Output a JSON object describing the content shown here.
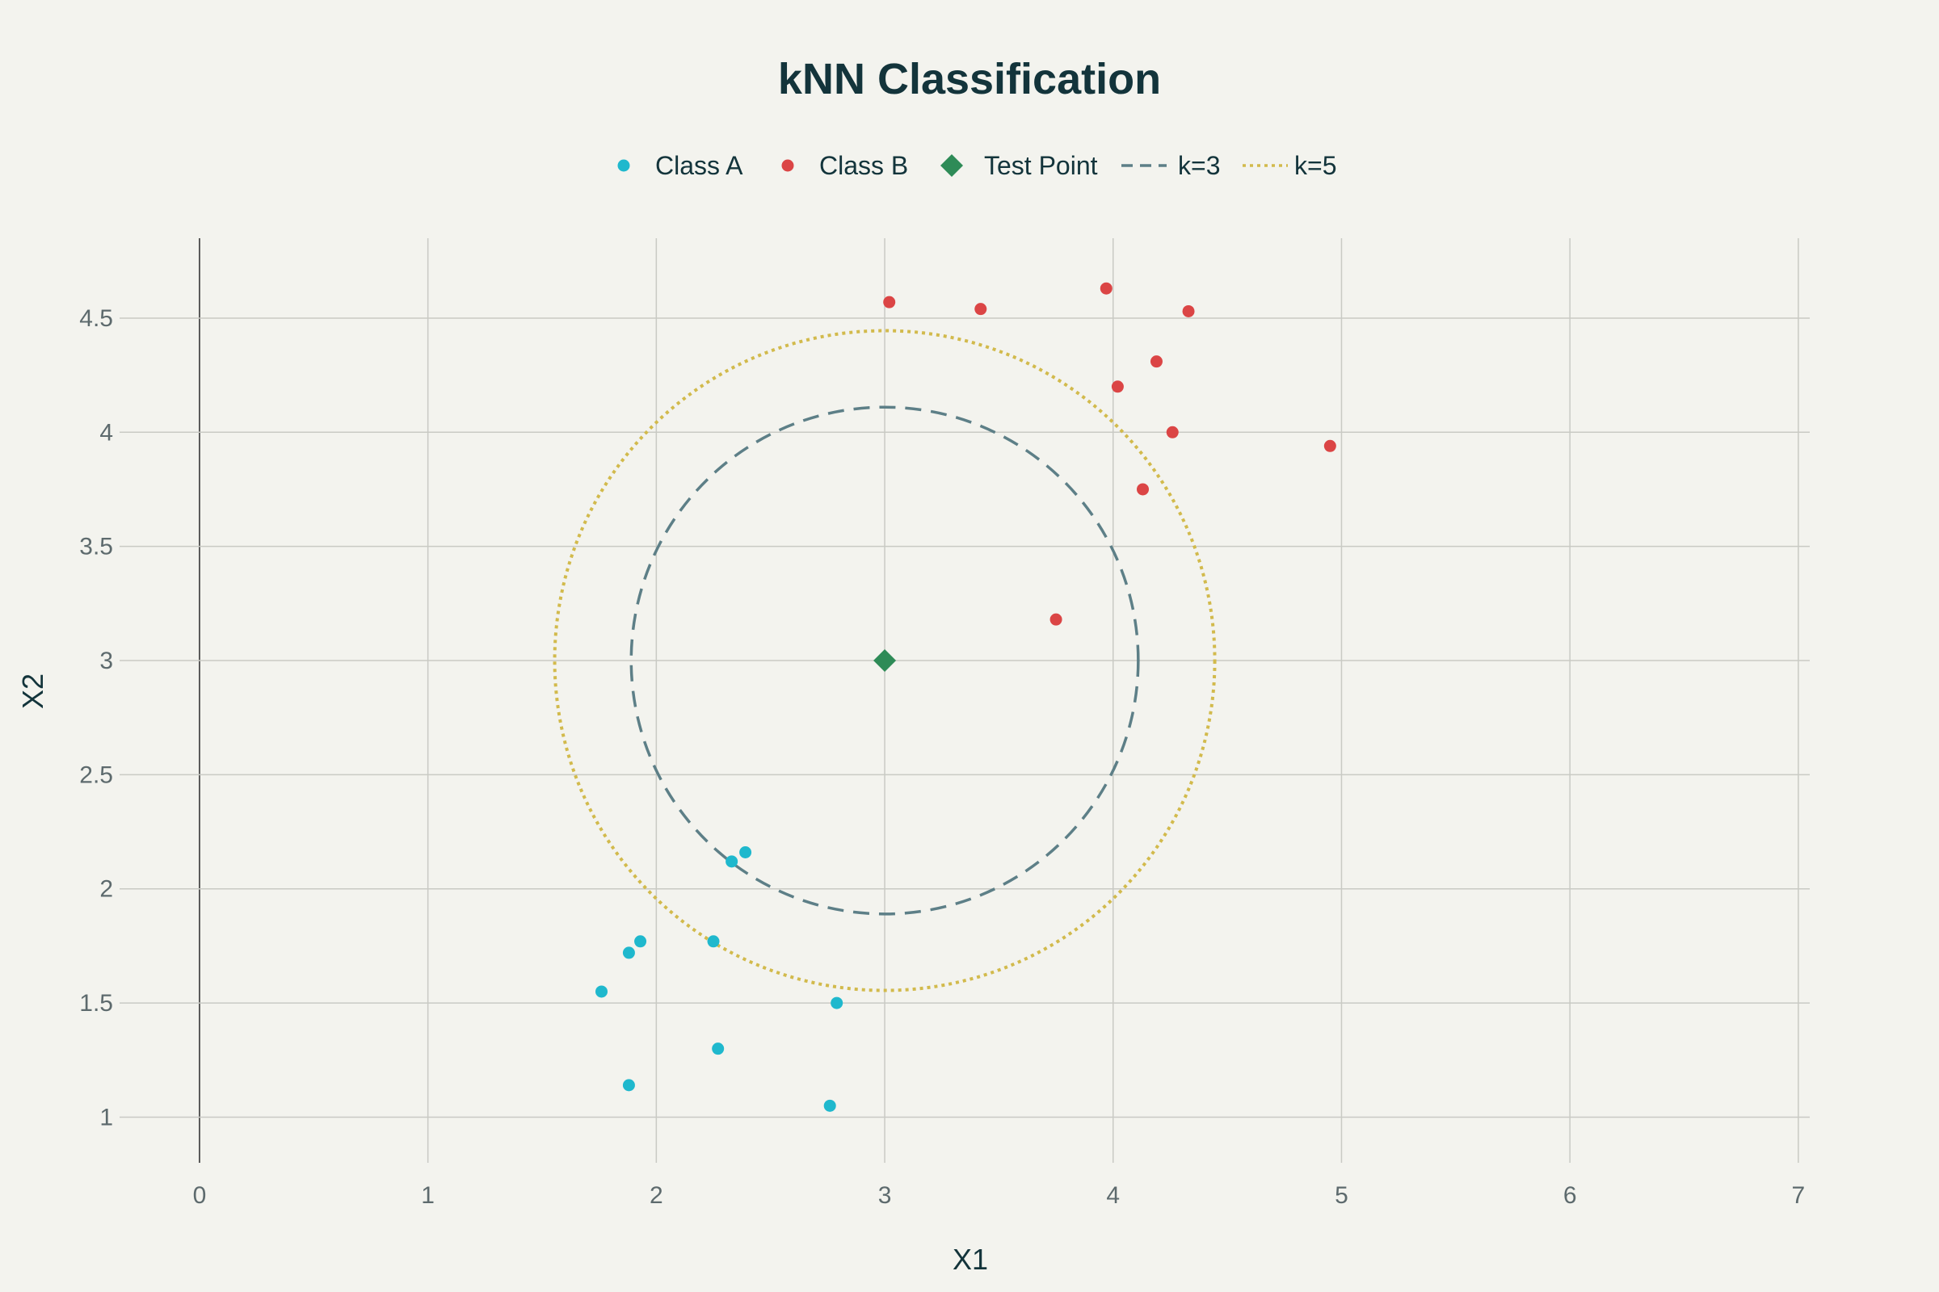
{
  "chart_data": {
    "type": "scatter",
    "title": "kNN Classification",
    "xlabel": "X1",
    "ylabel": "X2",
    "xlim": [
      -0.35,
      7.05
    ],
    "ylim": [
      0.8,
      4.85
    ],
    "x_ticks": [
      0,
      1,
      2,
      3,
      4,
      5,
      6,
      7
    ],
    "y_ticks": [
      1,
      1.5,
      2,
      2.5,
      3,
      3.5,
      4,
      4.5
    ],
    "grid": true,
    "legend_position": "top-center",
    "series": [
      {
        "name": "Class A",
        "marker": "circle",
        "color": "#1fb8cd",
        "points": [
          {
            "x": 2.39,
            "y": 2.16
          },
          {
            "x": 2.33,
            "y": 2.12
          },
          {
            "x": 2.25,
            "y": 1.77
          },
          {
            "x": 1.93,
            "y": 1.77
          },
          {
            "x": 1.88,
            "y": 1.72
          },
          {
            "x": 1.76,
            "y": 1.55
          },
          {
            "x": 2.79,
            "y": 1.5
          },
          {
            "x": 2.27,
            "y": 1.3
          },
          {
            "x": 1.88,
            "y": 1.14
          },
          {
            "x": 2.76,
            "y": 1.05
          }
        ]
      },
      {
        "name": "Class B",
        "marker": "circle",
        "color": "#db4545",
        "points": [
          {
            "x": 3.02,
            "y": 4.57
          },
          {
            "x": 3.42,
            "y": 4.54
          },
          {
            "x": 3.97,
            "y": 4.63
          },
          {
            "x": 4.33,
            "y": 4.53
          },
          {
            "x": 4.19,
            "y": 4.31
          },
          {
            "x": 4.02,
            "y": 4.2
          },
          {
            "x": 4.26,
            "y": 4.0
          },
          {
            "x": 4.95,
            "y": 3.94
          },
          {
            "x": 4.13,
            "y": 3.75
          },
          {
            "x": 3.75,
            "y": 3.18
          }
        ]
      },
      {
        "name": "Test Point",
        "marker": "diamond",
        "color": "#2e8b57",
        "points": [
          {
            "x": 3.0,
            "y": 3.0
          }
        ]
      }
    ],
    "circles": [
      {
        "name": "k=3",
        "center_x": 3.0,
        "center_y": 3.0,
        "radius": 1.11,
        "dash": "dashed",
        "color": "#5d7f87"
      },
      {
        "name": "k=5",
        "center_x": 3.0,
        "center_y": 3.0,
        "radius": 1.445,
        "dash": "dotted",
        "color": "#d2ba4c"
      }
    ]
  }
}
